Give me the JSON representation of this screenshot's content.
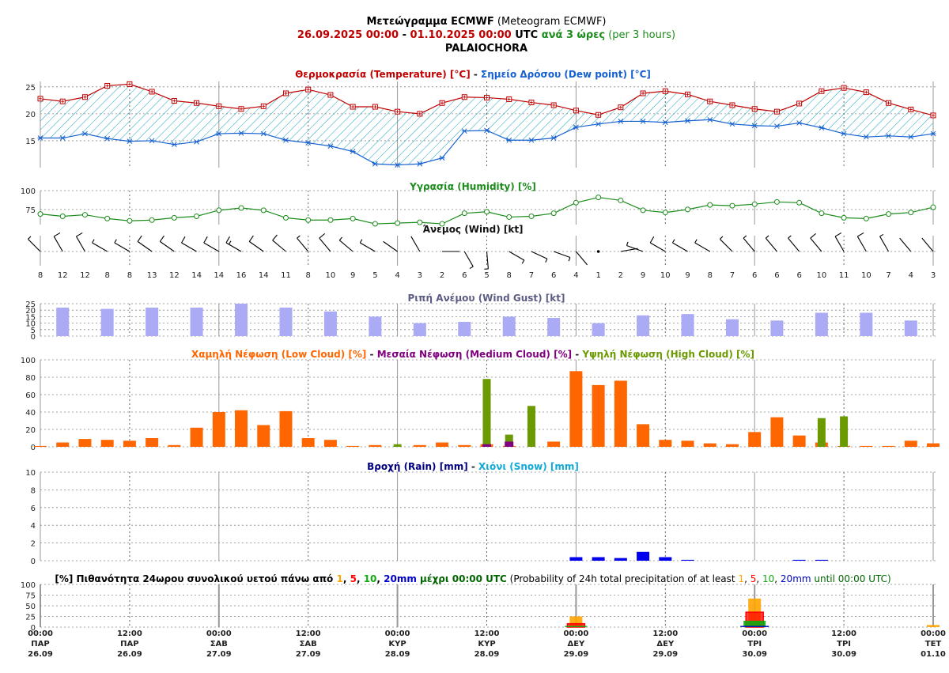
{
  "header": {
    "title_bold": "Μετεώγραμμα ECMWF",
    "title_rest": " (Meteogram ECMWF)",
    "range_start": "26.09.2025 00:00",
    "range_sep": " - ",
    "range_end": "01.10.2025 00:00",
    "range_utc": " UTC ",
    "step_gr": "ανά 3 ώρες",
    "step_en": " (per 3 hours)",
    "location": "PALAIOCHORA"
  },
  "colors": {
    "temperature": "#c00000",
    "dewpoint": "#1560d0",
    "fill_hatch": "#17a3c0",
    "humidity": "#1c8c1c",
    "gust": "#aaaaf5",
    "gust_title": "#5c5c84",
    "low_cloud": "#ff6600",
    "medium_cloud": "#800080",
    "high_cloud": "#6a9a00",
    "rain": "#0000ee",
    "rain_title": "#000080",
    "snow": "#12a8d8",
    "p1": "#ffa500",
    "p5": "#ff0000",
    "p10": "#11aa11",
    "p20": "#0000cc"
  },
  "temp_panel": {
    "title_temp": "Θερμοκρασία (Temperature) [°C]",
    "title_sep": " - ",
    "title_dew": "Σημείο Δρόσου (Dew point) [°C]"
  },
  "humidity_panel": {
    "title": "Υγρασία (Humidity) [%]"
  },
  "wind_panel": {
    "title": "Άνεμος (Wind) [kt]",
    "speeds": [
      8,
      12,
      12,
      8,
      8,
      13,
      12,
      14,
      14,
      16,
      14,
      11,
      8,
      10,
      9,
      5,
      4,
      3,
      2,
      6,
      5,
      8,
      7,
      6,
      4,
      1,
      2,
      9,
      10,
      9,
      8,
      7,
      6,
      6,
      6,
      10,
      11,
      10,
      7,
      4,
      3
    ]
  },
  "gust_panel": {
    "title": "Ριπή Ανέμου (Wind Gust) [kt]"
  },
  "cloud_panel": {
    "title_low": "Χαμηλή Νέφωση (Low Cloud) [%]",
    "title_med": "Μεσαία Νέφωση (Medium Cloud) [%]",
    "title_high": "Υψηλή Νέφωση (High Cloud) [%]",
    "sep": " - "
  },
  "rain_panel": {
    "title_rain": "Βροχή (Rain) [mm]",
    "sep": " - ",
    "title_snow": "Χιόνι (Snow) [mm]"
  },
  "prob_panel": {
    "t_pre": "[%] Πιθανότητα 24ωρου συνολικού υετού πάνω από ",
    "t1": "1",
    "t_c1": ", ",
    "t5": "5",
    "t_c2": ", ",
    "t10": "10",
    "t_c3": ", ",
    "t20": "20mm",
    "t_mid": " μέχρι 00:00 UTC",
    "t_en_pre": " (Probability of 24h total precipitation of at least ",
    "e1": "1",
    "e_c1": ", ",
    "e5": "5",
    "e_c2": ", ",
    "e10": "10",
    "e_c3": ", ",
    "e20": "20mm",
    "e_end": " until 00:00 UTC)"
  },
  "x_axis": {
    "labels": [
      {
        "time": "00:00",
        "day": "ΠΑΡ",
        "date": "26.09"
      },
      {
        "time": "12:00",
        "day": "ΠΑΡ",
        "date": "26.09"
      },
      {
        "time": "00:00",
        "day": "ΣΑΒ",
        "date": "27.09"
      },
      {
        "time": "12:00",
        "day": "ΣΑΒ",
        "date": "27.09"
      },
      {
        "time": "00:00",
        "day": "ΚΥΡ",
        "date": "28.09"
      },
      {
        "time": "12:00",
        "day": "ΚΥΡ",
        "date": "28.09"
      },
      {
        "time": "00:00",
        "day": "ΔΕΥ",
        "date": "29.09"
      },
      {
        "time": "12:00",
        "day": "ΔΕΥ",
        "date": "29.09"
      },
      {
        "time": "00:00",
        "day": "ΤΡΙ",
        "date": "30.09"
      },
      {
        "time": "12:00",
        "day": "ΤΡΙ",
        "date": "30.09"
      },
      {
        "time": "00:00",
        "day": "ΤΕΤ",
        "date": "01.10"
      }
    ]
  },
  "chart_data": {
    "type": "line",
    "time_step": "3 hours",
    "temperature": [
      22.8,
      22.3,
      23.1,
      25.2,
      25.5,
      24.1,
      22.4,
      22.0,
      21.4,
      20.9,
      21.4,
      23.8,
      24.5,
      23.5,
      21.3,
      21.3,
      20.4,
      20.0,
      22.0,
      23.1,
      23.0,
      22.7,
      22.1,
      21.6,
      20.6,
      19.8,
      21.2,
      23.8,
      24.2,
      23.6,
      22.3,
      21.6,
      20.9,
      20.4,
      21.9,
      24.2,
      24.8,
      24.0,
      22.0,
      20.8,
      19.7
    ],
    "dewpoint": [
      15.5,
      15.5,
      16.3,
      15.4,
      14.9,
      15.0,
      14.3,
      14.8,
      16.3,
      16.4,
      16.3,
      15.1,
      14.6,
      14.0,
      13.0,
      10.7,
      10.5,
      10.7,
      11.8,
      16.8,
      16.9,
      15.1,
      15.1,
      15.5,
      17.5,
      18.1,
      18.6,
      18.6,
      18.4,
      18.7,
      18.9,
      18.1,
      17.8,
      17.7,
      18.3,
      17.4,
      16.3,
      15.7,
      15.9,
      15.7,
      16.3
    ],
    "temp_ylim": [
      10,
      26
    ],
    "humidity": [
      69,
      66,
      68,
      63,
      60,
      61,
      64,
      66,
      74,
      77,
      74,
      64,
      61,
      61,
      63,
      56,
      57,
      58,
      56,
      70,
      72,
      65,
      66,
      70,
      84,
      91,
      87,
      74,
      71,
      75,
      81,
      80,
      82,
      85,
      84,
      70,
      64,
      63,
      69,
      71,
      78
    ],
    "humidity_ylim": [
      55,
      100
    ],
    "wind_speed": [
      8,
      12,
      12,
      8,
      8,
      13,
      12,
      14,
      14,
      16,
      14,
      11,
      8,
      10,
      9,
      5,
      4,
      3,
      2,
      6,
      5,
      8,
      7,
      6,
      4,
      1,
      2,
      9,
      10,
      9,
      8,
      7,
      6,
      6,
      6,
      10,
      11,
      10,
      7,
      4,
      3
    ],
    "wind_dir_deg": [
      315,
      330,
      330,
      300,
      300,
      305,
      305,
      300,
      300,
      300,
      305,
      310,
      320,
      320,
      310,
      300,
      305,
      330,
      90,
      150,
      175,
      120,
      115,
      110,
      140,
      120,
      80,
      290,
      300,
      300,
      300,
      315,
      320,
      320,
      320,
      320,
      330,
      330,
      330,
      320,
      320
    ],
    "gust": [
      22,
      21,
      22,
      22,
      25,
      22,
      19,
      15,
      10,
      11,
      15,
      14,
      10,
      16,
      17,
      13,
      12,
      18,
      18,
      12
    ],
    "gust_ylim": [
      0,
      25
    ],
    "low_cloud": [
      1,
      5,
      9,
      8,
      7,
      10,
      2,
      22,
      40,
      42,
      25,
      41,
      10,
      8,
      1,
      2,
      0,
      2,
      5,
      2,
      3,
      1,
      0,
      6,
      87,
      71,
      76,
      26,
      8,
      7,
      4,
      3,
      17,
      34,
      13,
      5,
      1,
      1,
      1,
      7,
      4
    ],
    "medium_cloud": [
      0,
      0,
      0,
      0,
      0,
      0,
      0,
      0,
      0,
      0,
      0,
      0,
      0,
      0,
      0,
      0,
      0,
      0,
      0,
      0,
      3,
      6,
      0,
      0,
      0,
      0,
      0,
      0,
      0,
      0,
      0,
      0,
      0,
      0,
      0,
      0,
      0,
      0,
      0,
      0,
      0
    ],
    "high_cloud": [
      0,
      0,
      0,
      0,
      0,
      0,
      0,
      0,
      0,
      0,
      0,
      0,
      0,
      0,
      0,
      0,
      3,
      0,
      0,
      0,
      78,
      14,
      47,
      0,
      0,
      0,
      0,
      0,
      0,
      0,
      0,
      0,
      0,
      0,
      0,
      33,
      35,
      0,
      0,
      0,
      0
    ],
    "cloud_ylim": [
      0,
      100
    ],
    "rain": [
      0,
      0,
      0,
      0,
      0,
      0,
      0,
      0,
      0,
      0,
      0,
      0,
      0,
      0,
      0,
      0,
      0,
      0,
      0,
      0,
      0,
      0,
      0,
      0,
      0.4,
      0.4,
      0.3,
      1.0,
      0.4,
      0.1,
      0,
      0,
      0,
      0,
      0.1,
      0.1,
      0,
      0,
      0,
      0,
      0
    ],
    "snow": [
      0,
      0,
      0,
      0,
      0,
      0,
      0,
      0,
      0,
      0,
      0,
      0,
      0,
      0,
      0,
      0,
      0,
      0,
      0,
      0,
      0,
      0,
      0,
      0,
      0,
      0,
      0,
      0,
      0,
      0,
      0,
      0,
      0,
      0,
      0,
      0,
      0,
      0,
      0,
      0,
      0
    ],
    "rain_ylim": [
      0,
      10
    ],
    "prob_24h": [
      {
        "date": "29.09",
        "p1": 25,
        "p5": 8,
        "p10": 3,
        "p20": 0
      },
      {
        "date": "30.09",
        "p1": 67,
        "p5": 35,
        "p10": 15,
        "p20": 3
      },
      {
        "date": "01.10",
        "p1": 5,
        "p5": 0,
        "p10": 0,
        "p20": 0
      }
    ],
    "prob_ylim": [
      0,
      100
    ]
  }
}
